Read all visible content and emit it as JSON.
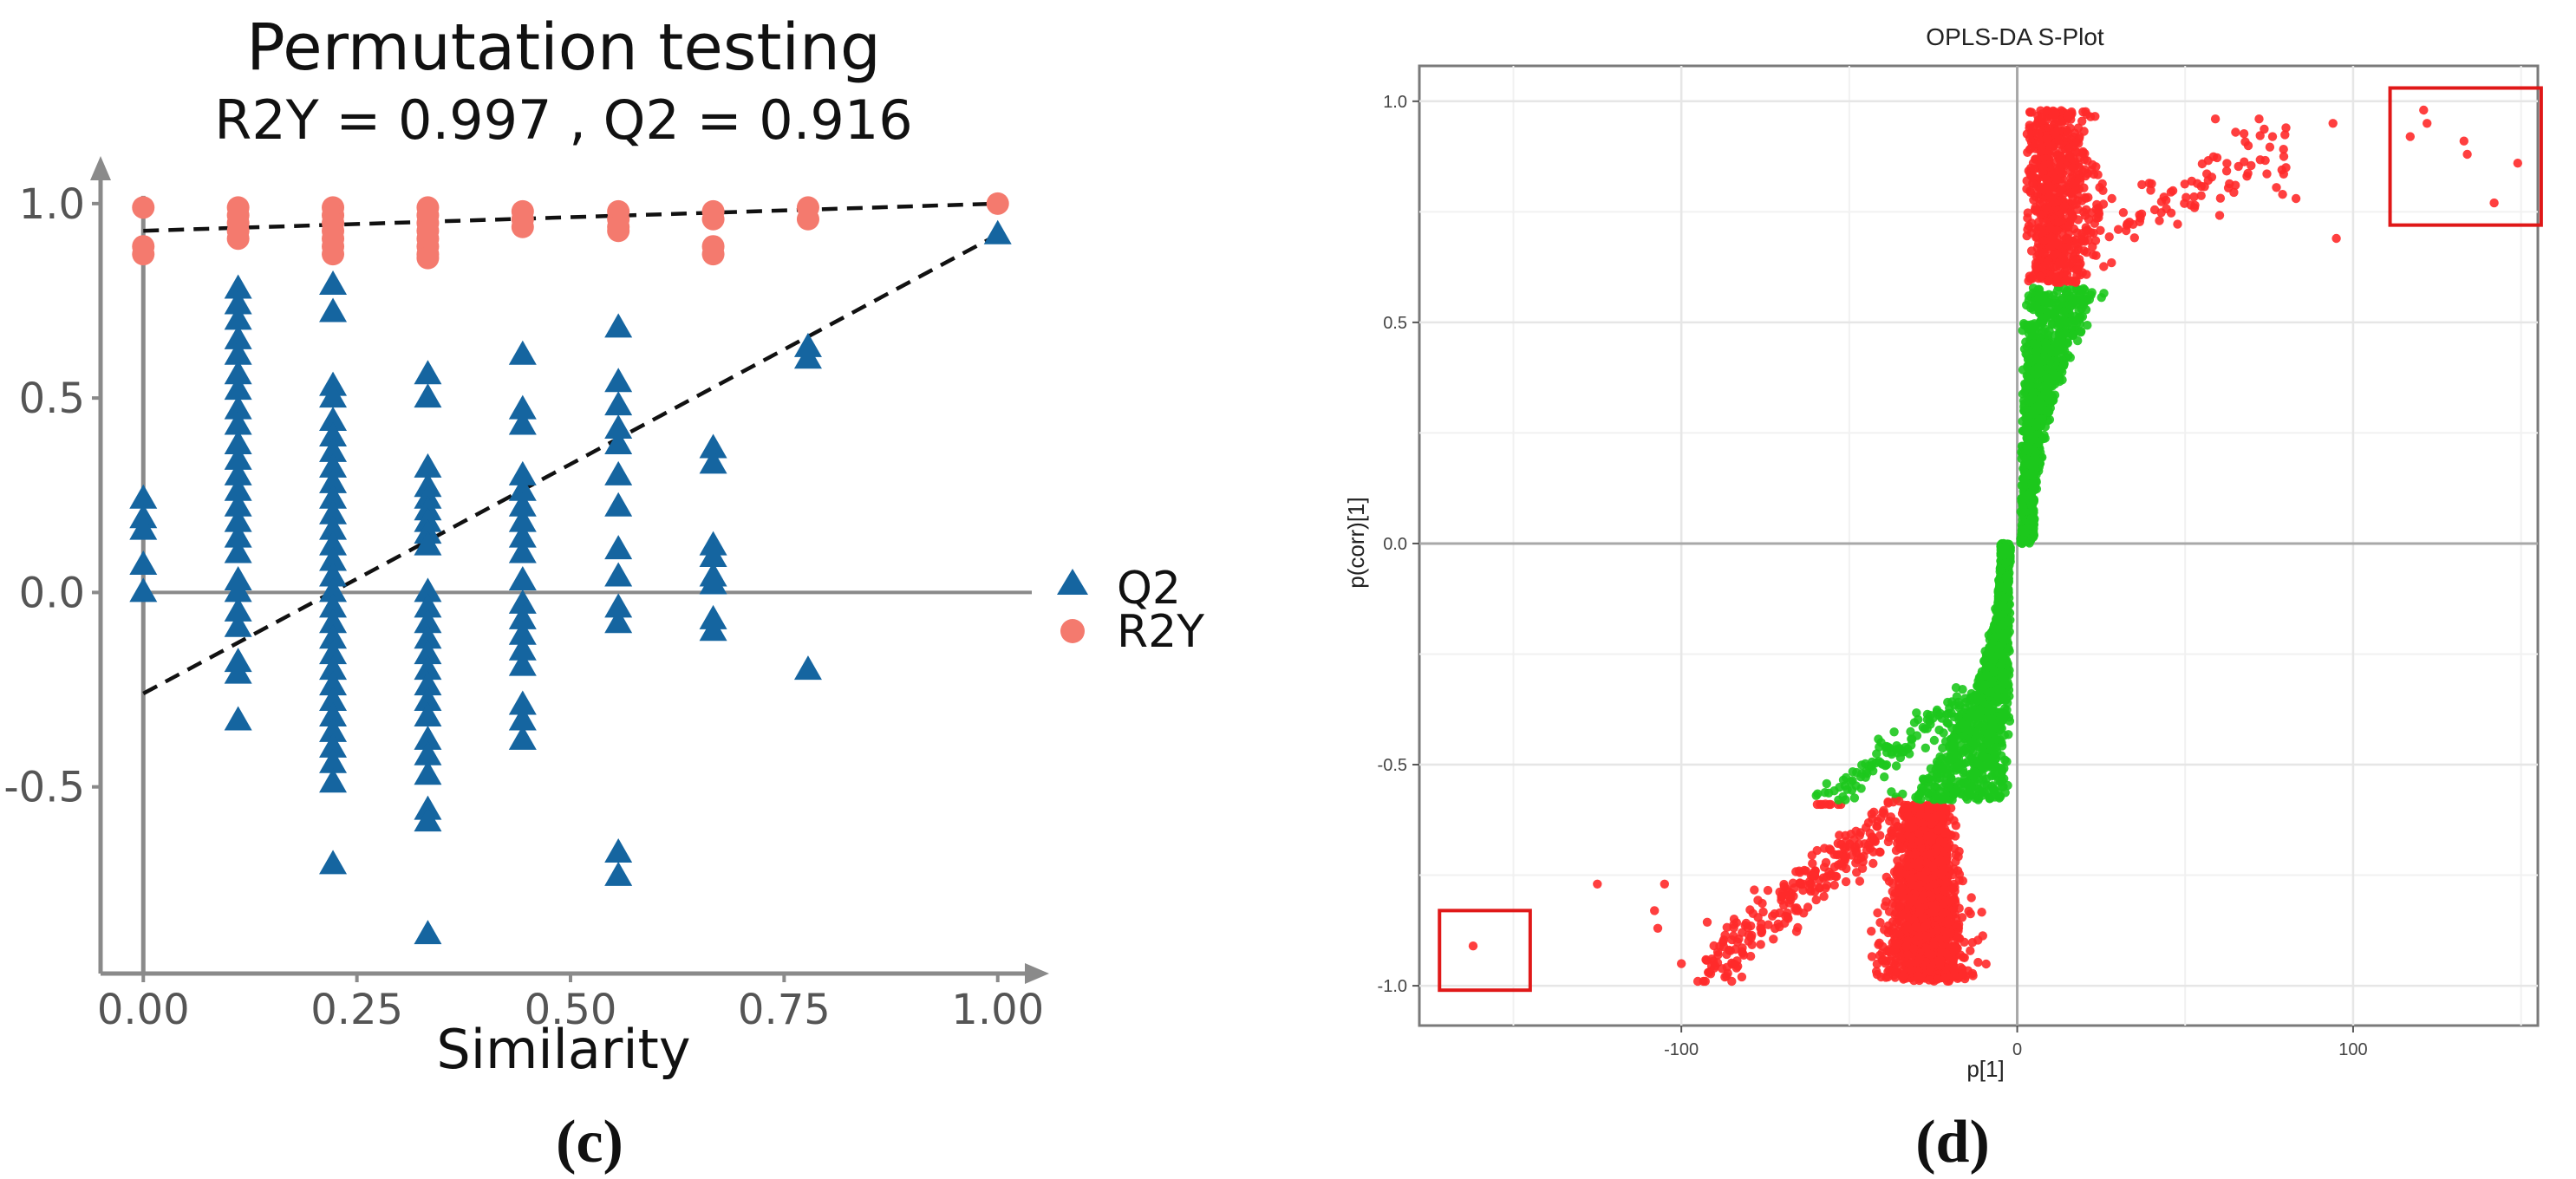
{
  "figure": {
    "panel_labels": [
      "(c)",
      "(d)"
    ]
  },
  "colors": {
    "q2": "#1565a0",
    "r2y": "#f47a6e",
    "splot_red": "#ff2a2a",
    "splot_green": "#1dc81d",
    "box": "#e01818",
    "axis_gray": "#8a8a8a",
    "grid": "#e6e6e6"
  },
  "chart_data": [
    {
      "type": "scatter",
      "title": "Permutation testing",
      "subtitle": "R2Y = 0.997 ,  Q2 = 0.916",
      "xlabel": "Similarity",
      "ylabel": "",
      "xlim": [
        -0.05,
        1.05
      ],
      "ylim": [
        -0.98,
        1.1
      ],
      "xticks": [
        "0.00",
        "0.25",
        "0.50",
        "0.75",
        "1.00"
      ],
      "xtick_values": [
        0,
        0.25,
        0.5,
        0.75,
        1.0
      ],
      "yticks": [
        "-0.5",
        "0.0",
        "0.5",
        "1.0"
      ],
      "ytick_values": [
        -0.5,
        0,
        0.5,
        1.0
      ],
      "legend_position": "right",
      "grid": false,
      "series": [
        {
          "name": "Q2",
          "marker": "triangle",
          "points": [
            [
              0,
              0.24
            ],
            [
              0,
              0.19
            ],
            [
              0,
              0.16
            ],
            [
              0,
              0.07
            ],
            [
              0,
              0.0
            ],
            [
              0.111,
              0.78
            ],
            [
              0.111,
              0.74
            ],
            [
              0.111,
              0.7
            ],
            [
              0.111,
              0.65
            ],
            [
              0.111,
              0.61
            ],
            [
              0.111,
              0.56
            ],
            [
              0.111,
              0.52
            ],
            [
              0.111,
              0.47
            ],
            [
              0.111,
              0.43
            ],
            [
              0.111,
              0.38
            ],
            [
              0.111,
              0.34
            ],
            [
              0.111,
              0.3
            ],
            [
              0.111,
              0.26
            ],
            [
              0.111,
              0.22
            ],
            [
              0.111,
              0.18
            ],
            [
              0.111,
              0.14
            ],
            [
              0.111,
              0.1
            ],
            [
              0.111,
              0.03
            ],
            [
              0.111,
              0.0
            ],
            [
              0.111,
              -0.05
            ],
            [
              0.111,
              -0.09
            ],
            [
              0.111,
              -0.18
            ],
            [
              0.111,
              -0.21
            ],
            [
              0.111,
              -0.33
            ],
            [
              0.222,
              0.79
            ],
            [
              0.222,
              0.72
            ],
            [
              0.222,
              0.53
            ],
            [
              0.222,
              0.5
            ],
            [
              0.222,
              0.44
            ],
            [
              0.222,
              0.4
            ],
            [
              0.222,
              0.36
            ],
            [
              0.222,
              0.32
            ],
            [
              0.222,
              0.28
            ],
            [
              0.222,
              0.24
            ],
            [
              0.222,
              0.2
            ],
            [
              0.222,
              0.16
            ],
            [
              0.222,
              0.12
            ],
            [
              0.222,
              0.08
            ],
            [
              0.222,
              0.04
            ],
            [
              0.222,
              0.0
            ],
            [
              0.222,
              -0.04
            ],
            [
              0.222,
              -0.08
            ],
            [
              0.222,
              -0.12
            ],
            [
              0.222,
              -0.16
            ],
            [
              0.222,
              -0.2
            ],
            [
              0.222,
              -0.24
            ],
            [
              0.222,
              -0.28
            ],
            [
              0.222,
              -0.32
            ],
            [
              0.222,
              -0.36
            ],
            [
              0.222,
              -0.4
            ],
            [
              0.222,
              -0.44
            ],
            [
              0.222,
              -0.49
            ],
            [
              0.222,
              -0.7
            ],
            [
              0.333,
              0.56
            ],
            [
              0.333,
              0.5
            ],
            [
              0.333,
              0.32
            ],
            [
              0.333,
              0.27
            ],
            [
              0.333,
              0.24
            ],
            [
              0.333,
              0.21
            ],
            [
              0.333,
              0.18
            ],
            [
              0.333,
              0.15
            ],
            [
              0.333,
              0.12
            ],
            [
              0.333,
              0.0
            ],
            [
              0.333,
              -0.04
            ],
            [
              0.333,
              -0.08
            ],
            [
              0.333,
              -0.12
            ],
            [
              0.333,
              -0.16
            ],
            [
              0.333,
              -0.2
            ],
            [
              0.333,
              -0.24
            ],
            [
              0.333,
              -0.28
            ],
            [
              0.333,
              -0.32
            ],
            [
              0.333,
              -0.38
            ],
            [
              0.333,
              -0.42
            ],
            [
              0.333,
              -0.47
            ],
            [
              0.333,
              -0.56
            ],
            [
              0.333,
              -0.59
            ],
            [
              0.333,
              -0.88
            ],
            [
              0.444,
              0.61
            ],
            [
              0.444,
              0.47
            ],
            [
              0.444,
              0.43
            ],
            [
              0.444,
              0.3
            ],
            [
              0.444,
              0.26
            ],
            [
              0.444,
              0.22
            ],
            [
              0.444,
              0.18
            ],
            [
              0.444,
              0.14
            ],
            [
              0.444,
              0.1
            ],
            [
              0.444,
              0.03
            ],
            [
              0.444,
              -0.03
            ],
            [
              0.444,
              -0.07
            ],
            [
              0.444,
              -0.11
            ],
            [
              0.444,
              -0.15
            ],
            [
              0.444,
              -0.19
            ],
            [
              0.444,
              -0.29
            ],
            [
              0.444,
              -0.33
            ],
            [
              0.444,
              -0.38
            ],
            [
              0.556,
              0.68
            ],
            [
              0.556,
              0.54
            ],
            [
              0.556,
              0.48
            ],
            [
              0.556,
              0.42
            ],
            [
              0.556,
              0.38
            ],
            [
              0.556,
              0.3
            ],
            [
              0.556,
              0.22
            ],
            [
              0.556,
              0.11
            ],
            [
              0.556,
              0.04
            ],
            [
              0.556,
              -0.04
            ],
            [
              0.556,
              -0.08
            ],
            [
              0.556,
              -0.67
            ],
            [
              0.556,
              -0.73
            ],
            [
              0.667,
              0.37
            ],
            [
              0.667,
              0.33
            ],
            [
              0.667,
              0.12
            ],
            [
              0.667,
              0.09
            ],
            [
              0.667,
              0.04
            ],
            [
              0.667,
              0.02
            ],
            [
              0.667,
              -0.07
            ],
            [
              0.667,
              -0.1
            ],
            [
              0.778,
              0.63
            ],
            [
              0.778,
              0.6
            ],
            [
              0.778,
              -0.2
            ],
            [
              1.0,
              0.92
            ]
          ]
        },
        {
          "name": "R2Y",
          "marker": "circle",
          "points": [
            [
              0,
              0.99
            ],
            [
              0,
              0.89
            ],
            [
              0,
              0.87
            ],
            [
              0.111,
              0.99
            ],
            [
              0.111,
              0.97
            ],
            [
              0.111,
              0.95
            ],
            [
              0.111,
              0.93
            ],
            [
              0.111,
              0.91
            ],
            [
              0.222,
              0.99
            ],
            [
              0.222,
              0.97
            ],
            [
              0.222,
              0.95
            ],
            [
              0.222,
              0.93
            ],
            [
              0.222,
              0.91
            ],
            [
              0.222,
              0.89
            ],
            [
              0.222,
              0.87
            ],
            [
              0.333,
              0.99
            ],
            [
              0.333,
              0.97
            ],
            [
              0.333,
              0.95
            ],
            [
              0.333,
              0.93
            ],
            [
              0.333,
              0.91
            ],
            [
              0.333,
              0.89
            ],
            [
              0.333,
              0.87
            ],
            [
              0.333,
              0.86
            ],
            [
              0.444,
              0.98
            ],
            [
              0.444,
              0.96
            ],
            [
              0.444,
              0.94
            ],
            [
              0.556,
              0.98
            ],
            [
              0.556,
              0.96
            ],
            [
              0.556,
              0.94
            ],
            [
              0.556,
              0.93
            ],
            [
              0.667,
              0.98
            ],
            [
              0.667,
              0.96
            ],
            [
              0.667,
              0.89
            ],
            [
              0.667,
              0.87
            ],
            [
              0.778,
              0.99
            ],
            [
              0.778,
              0.96
            ],
            [
              1.0,
              1.0
            ]
          ]
        }
      ],
      "regression_lines": [
        {
          "of": "R2Y",
          "x": [
            0,
            1.0
          ],
          "y": [
            0.93,
            1.0
          ],
          "style": "dashed"
        },
        {
          "of": "Q2",
          "x": [
            0,
            1.0
          ],
          "y": [
            -0.26,
            0.92
          ],
          "style": "dashed"
        }
      ]
    },
    {
      "type": "scatter",
      "title": "OPLS-DA S-Plot",
      "xlabel": "p[1]",
      "ylabel": "p(corr)[1]",
      "xlim": [
        -178,
        155
      ],
      "ylim": [
        -1.09,
        1.08
      ],
      "xticks": [
        "-100",
        "0",
        "100"
      ],
      "xtick_values": [
        -100,
        0,
        100
      ],
      "yticks": [
        "-1.0",
        "-0.5",
        "0.0",
        "0.5",
        "1.0"
      ],
      "ytick_values": [
        -1.0,
        -0.5,
        0,
        0.5,
        1.0
      ],
      "grid": true,
      "color_rule": "red where |p(corr)| >= 0.58, otherwise green",
      "highlight_boxes": [
        {
          "x": [
            -172,
            -145
          ],
          "y": [
            -1.01,
            -0.83
          ]
        },
        {
          "x": [
            111,
            156
          ],
          "y": [
            0.72,
            1.03
          ]
        }
      ],
      "highlighted_points": [
        [
          -162,
          -0.91
        ],
        [
          117,
          0.92
        ],
        [
          121,
          0.98
        ],
        [
          122,
          0.95
        ],
        [
          133,
          0.91
        ],
        [
          134,
          0.88
        ],
        [
          142,
          0.77
        ],
        [
          149,
          0.86
        ]
      ],
      "notable_points": [
        [
          -125,
          -0.77
        ],
        [
          -105,
          -0.77
        ],
        [
          -108,
          -0.83
        ],
        [
          -107,
          -0.87
        ],
        [
          -100,
          -0.95
        ],
        [
          -92,
          -0.97
        ],
        [
          -85,
          -0.99
        ],
        [
          -82,
          -0.98
        ],
        [
          59,
          0.96
        ],
        [
          65,
          0.93
        ],
        [
          72,
          0.96
        ],
        [
          76,
          0.92
        ],
        [
          80,
          0.94
        ],
        [
          80,
          0.85
        ],
        [
          83,
          0.78
        ],
        [
          94,
          0.95
        ],
        [
          95,
          0.69
        ]
      ]
    }
  ]
}
